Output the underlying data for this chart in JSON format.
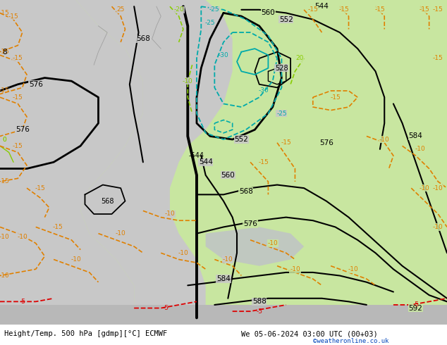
{
  "title_left": "Height/Temp. 500 hPa [gdmp][°C] ECMWF",
  "title_right": "We 05-06-2024 03:00 UTC (00+03)",
  "credit": "©weatheronline.co.uk",
  "bg_green": "#c8e6a0",
  "bg_gray": "#c8c8c8",
  "bg_mid_gray": "#d8d8d8",
  "black": "#000000",
  "cyan": "#00aaaa",
  "orange": "#e08000",
  "red": "#dd0000",
  "lime": "#88cc00",
  "blue_credit": "#0044bb",
  "font_size_bottom": 7.5,
  "fig_width": 6.34,
  "fig_height": 4.9,
  "dpi": 100
}
